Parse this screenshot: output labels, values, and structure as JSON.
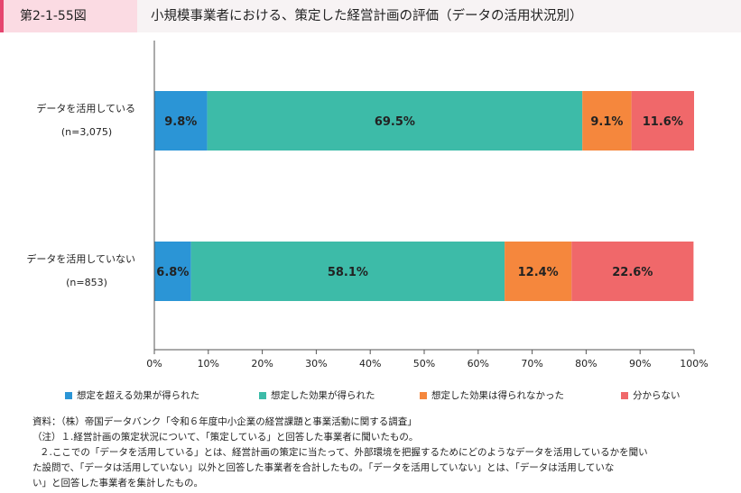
{
  "header": {
    "figure_number": "第2-1-55図",
    "title": "小規模事業者における、策定した経営計画の評価（データの活用状況別）"
  },
  "chart_data": {
    "type": "bar",
    "orientation": "horizontal-stacked-100",
    "categories": [
      {
        "label": "データを活用している",
        "sublabel": "(n=3,075)"
      },
      {
        "label": "データを活用していない",
        "sublabel": "(n=853)"
      }
    ],
    "series": [
      {
        "name": "想定を超える効果が得られた",
        "color": "#2b95d6",
        "values": [
          9.8,
          6.8
        ]
      },
      {
        "name": "想定した効果が得られた",
        "color": "#3dbba8",
        "values": [
          69.5,
          58.1
        ]
      },
      {
        "name": "想定した効果は得られなかった",
        "color": "#f5873d",
        "values": [
          9.1,
          12.4
        ]
      },
      {
        "name": "分からない",
        "color": "#f0686a",
        "values": [
          11.6,
          22.6
        ]
      }
    ],
    "xlim": [
      0,
      100
    ],
    "x_ticks": [
      "0%",
      "10%",
      "20%",
      "30%",
      "40%",
      "50%",
      "60%",
      "70%",
      "80%",
      "90%",
      "100%"
    ],
    "value_labels": [
      [
        "9.8%",
        "69.5%",
        "9.1%",
        "11.6%"
      ],
      [
        "6.8%",
        "58.1%",
        "12.4%",
        "22.6%"
      ]
    ],
    "legend_position": "bottom",
    "grid": false
  },
  "notes": [
    "資料：（株）帝国データバンク「令和６年度中小企業の経営課題と事業活動に関する調査」",
    "（注）１.経営計画の策定状況について、「策定している」と回答した事業者に聞いたもの。",
    "２.ここでの「データを活用している」とは、経営計画の策定に当たって、外部環境を把握するためにどのようなデータを活用しているかを聞い",
    "た設問で、「データは活用していない」以外と回答した事業者を合計したもの。「データを活用していない」とは、「データは活用していな",
    "い」と回答した事業者を集計したもの。"
  ]
}
